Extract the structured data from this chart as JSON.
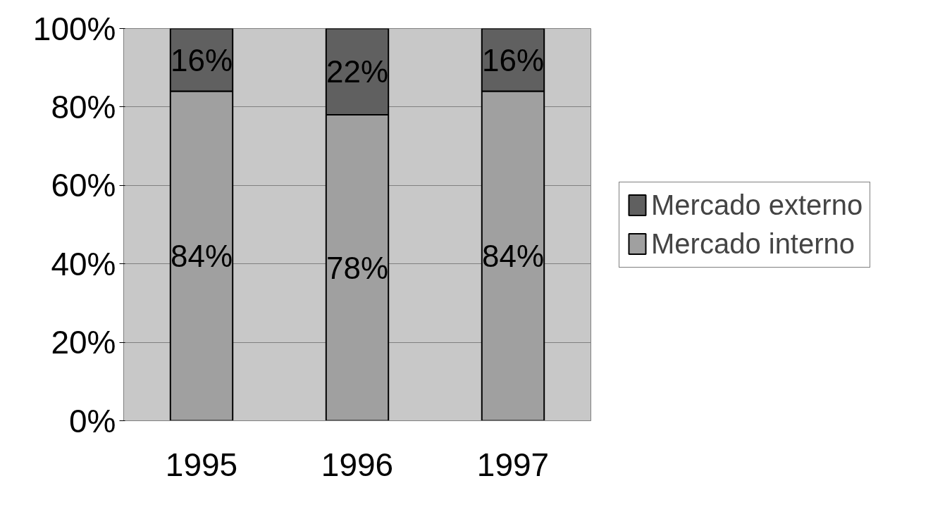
{
  "chart_data": {
    "type": "bar",
    "stacked": true,
    "categories": [
      "1995",
      "1996",
      "1997"
    ],
    "series": [
      {
        "name": "Mercado interno",
        "color": "#a0a0a0",
        "values": [
          84,
          78,
          84
        ],
        "value_labels": [
          "84%",
          "78%",
          "84%"
        ]
      },
      {
        "name": "Mercado externo",
        "color": "#606060",
        "values": [
          16,
          22,
          16
        ],
        "value_labels": [
          "16%",
          "22%",
          "16%"
        ]
      }
    ],
    "ylim": [
      0,
      100
    ],
    "yticks": [
      {
        "value": 0,
        "label": "0%"
      },
      {
        "value": 20,
        "label": "20%"
      },
      {
        "value": 40,
        "label": "40%"
      },
      {
        "value": 60,
        "label": "60%"
      },
      {
        "value": 80,
        "label": "80%"
      },
      {
        "value": 100,
        "label": "100%"
      }
    ],
    "grid": "y",
    "legend": "right"
  }
}
